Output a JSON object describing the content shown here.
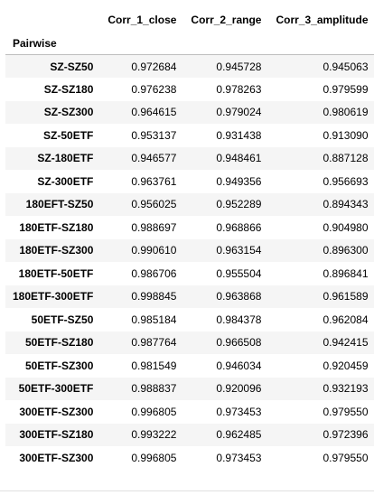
{
  "table": {
    "index_name": "Pairwise",
    "columns": [
      "Corr_1_close",
      "Corr_2_range",
      "Corr_3_amplitude"
    ],
    "rows": [
      {
        "label": "SZ-SZ50",
        "values": [
          "0.972684",
          "0.945728",
          "0.945063"
        ]
      },
      {
        "label": "SZ-SZ180",
        "values": [
          "0.976238",
          "0.978263",
          "0.979599"
        ]
      },
      {
        "label": "SZ-SZ300",
        "values": [
          "0.964615",
          "0.979024",
          "0.980619"
        ]
      },
      {
        "label": "SZ-50ETF",
        "values": [
          "0.953137",
          "0.931438",
          "0.913090"
        ]
      },
      {
        "label": "SZ-180ETF",
        "values": [
          "0.946577",
          "0.948461",
          "0.887128"
        ]
      },
      {
        "label": "SZ-300ETF",
        "values": [
          "0.963761",
          "0.949356",
          "0.956693"
        ]
      },
      {
        "label": "180EFT-SZ50",
        "values": [
          "0.956025",
          "0.952289",
          "0.894343"
        ]
      },
      {
        "label": "180ETF-SZ180",
        "values": [
          "0.988697",
          "0.968866",
          "0.904980"
        ]
      },
      {
        "label": "180ETF-SZ300",
        "values": [
          "0.990610",
          "0.963154",
          "0.896300"
        ]
      },
      {
        "label": "180ETF-50ETF",
        "values": [
          "0.986706",
          "0.955504",
          "0.896841"
        ]
      },
      {
        "label": "180ETF-300ETF",
        "values": [
          "0.998845",
          "0.963868",
          "0.961589"
        ]
      },
      {
        "label": "50ETF-SZ50",
        "values": [
          "0.985184",
          "0.984378",
          "0.962084"
        ]
      },
      {
        "label": "50ETF-SZ180",
        "values": [
          "0.987764",
          "0.966508",
          "0.942415"
        ]
      },
      {
        "label": "50ETF-SZ300",
        "values": [
          "0.981549",
          "0.946034",
          "0.920459"
        ]
      },
      {
        "label": "50ETF-300ETF",
        "values": [
          "0.988837",
          "0.920096",
          "0.932193"
        ]
      },
      {
        "label": "300ETF-SZ300",
        "values": [
          "0.996805",
          "0.973453",
          "0.979550"
        ]
      },
      {
        "label": "300ETF-SZ180",
        "values": [
          "0.993222",
          "0.962485",
          "0.972396"
        ]
      },
      {
        "label": "300ETF-SZ300",
        "values": [
          "0.996805",
          "0.973453",
          "0.979550"
        ]
      }
    ]
  }
}
